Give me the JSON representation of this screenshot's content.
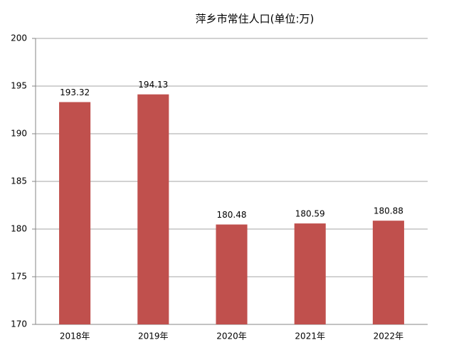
{
  "chart_data": {
    "type": "bar",
    "title": "萍乡市常住人口(单位:万)",
    "categories": [
      "2018年",
      "2019年",
      "2020年",
      "2021年",
      "2022年"
    ],
    "values": [
      193.32,
      194.13,
      180.48,
      180.59,
      180.88
    ],
    "color": "#c0504d",
    "ylim": [
      170,
      200
    ],
    "yticks": [
      170,
      175,
      180,
      185,
      190,
      195,
      200
    ],
    "grid": true
  }
}
